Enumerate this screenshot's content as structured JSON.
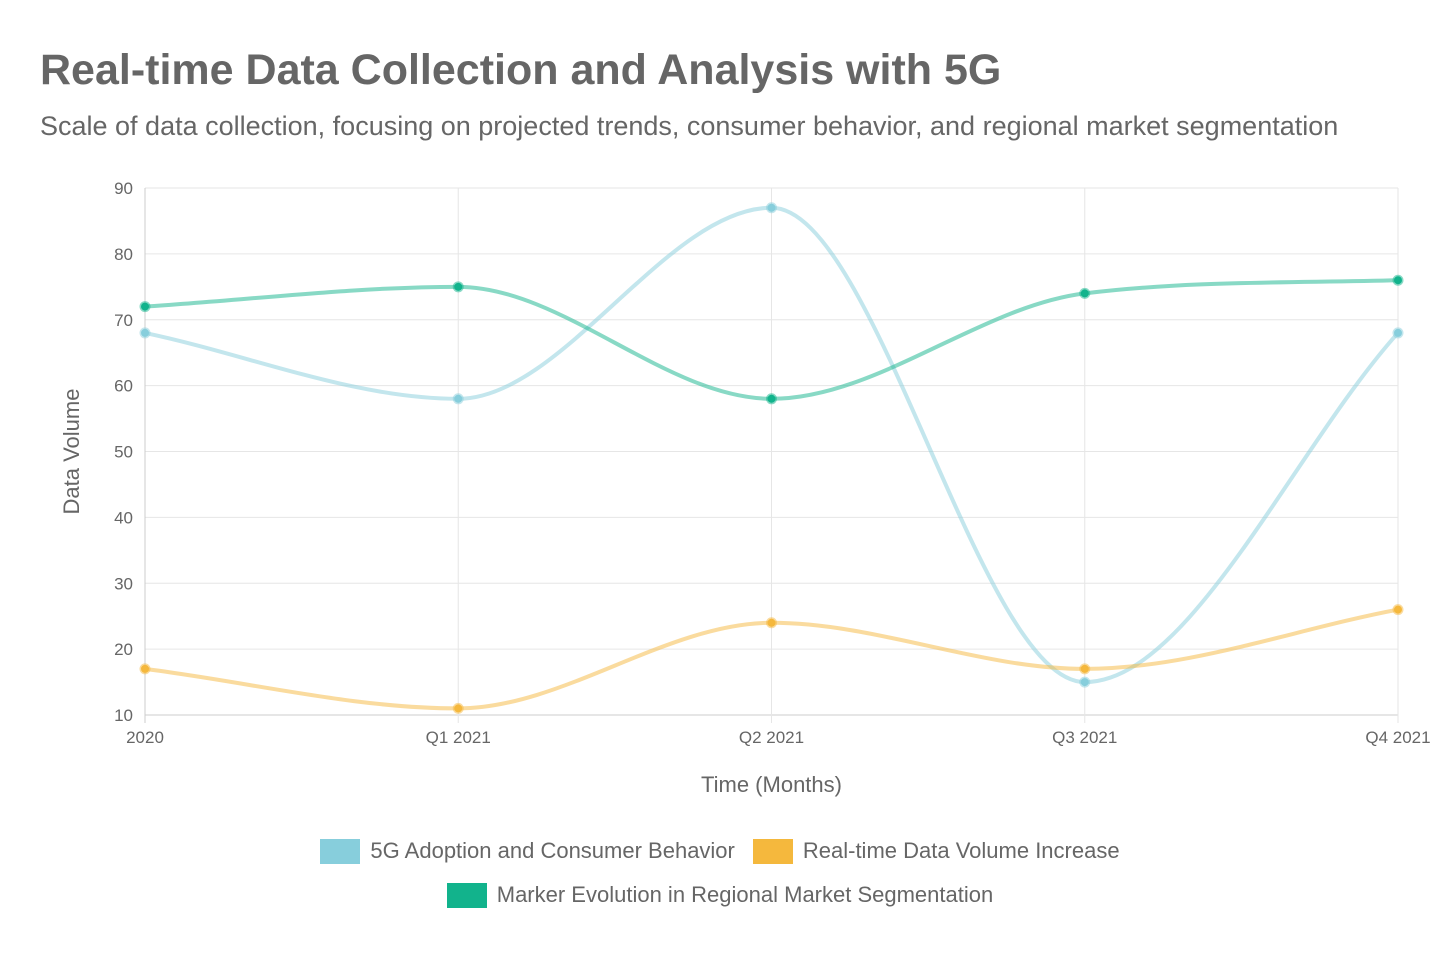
{
  "chart_data": {
    "type": "line",
    "title": "Real-time Data Collection and Analysis with 5G",
    "subtitle": "Scale of data collection, focusing on projected trends, consumer behavior, and regional market segmentation",
    "xlabel": "Time (Months)",
    "ylabel": "Data Volume",
    "categories": [
      "2020",
      "Q1 2021",
      "Q2 2021",
      "Q3 2021",
      "Q4 2021"
    ],
    "ylim": [
      10,
      90
    ],
    "yticks": [
      10,
      20,
      30,
      40,
      50,
      60,
      70,
      80,
      90
    ],
    "grid": true,
    "legend_position": "bottom",
    "series": [
      {
        "name": "5G Adoption and Consumer Behavior",
        "values": [
          68,
          58,
          87,
          15,
          68
        ],
        "color": "#87cedc"
      },
      {
        "name": "Real-time Data Volume Increase",
        "values": [
          17,
          11,
          24,
          17,
          26
        ],
        "color": "#f5b83d"
      },
      {
        "name": "Marker Evolution in Regional Market Segmentation",
        "values": [
          72,
          75,
          58,
          74,
          76
        ],
        "color": "#12b38c"
      }
    ]
  }
}
